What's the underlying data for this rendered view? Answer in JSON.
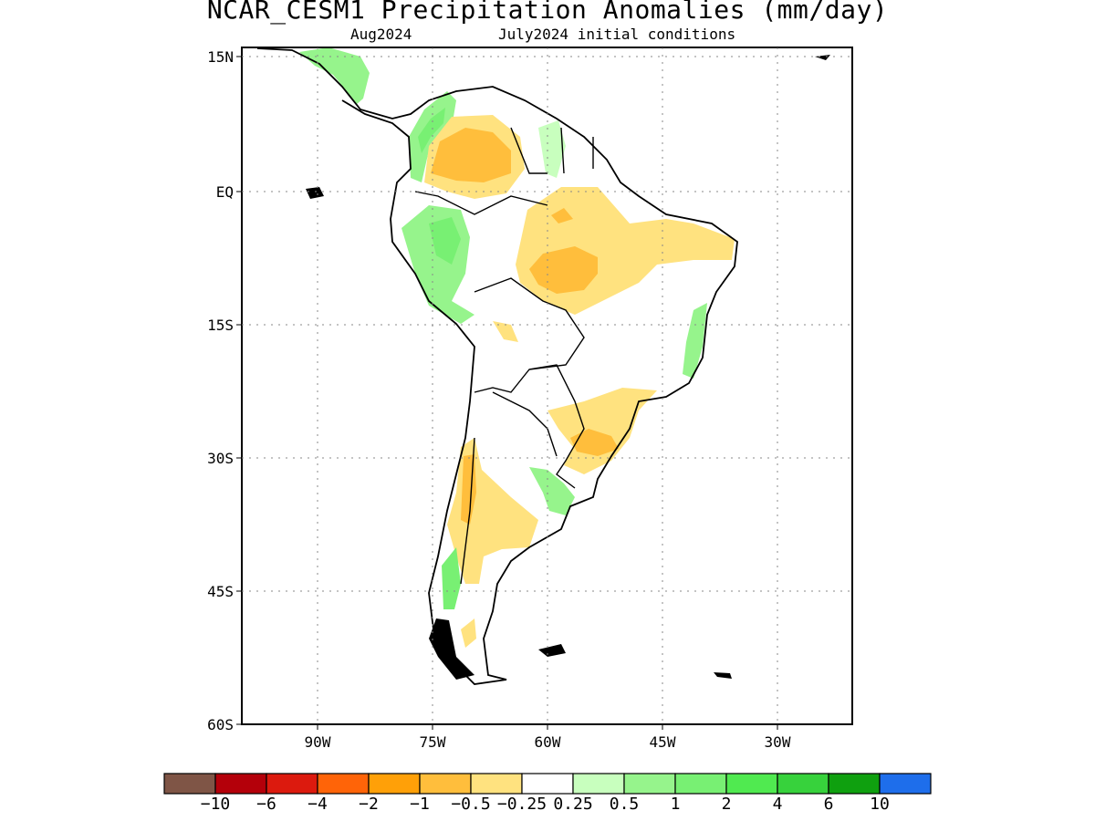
{
  "title": "NCAR_CESM1 Precipitation Anomalies (mm/day)",
  "subtitle_left": "Aug2024",
  "subtitle_right": "July2024 initial conditions",
  "map": {
    "lat_labels": [
      "15N",
      "EQ",
      "15S",
      "30S",
      "45S",
      "60S"
    ],
    "lon_labels": [
      "90W",
      "75W",
      "60W",
      "45W",
      "30W"
    ],
    "grid": "dotted"
  },
  "colorbar": {
    "colors": [
      "#7f5546",
      "#b4000a",
      "#dc1a0e",
      "#ff6408",
      "#ffa008",
      "#ffbe3c",
      "#ffe27f",
      "#ffffff",
      "#c8ffbe",
      "#96f48c",
      "#78f073",
      "#50ea50",
      "#37d23c",
      "#0fa00f",
      "#1e6eeb"
    ],
    "labels": [
      "−10",
      "−6",
      "−4",
      "−2",
      "−1",
      "−0.5",
      "−0.25",
      "0.25",
      "0.5",
      "1",
      "2",
      "4",
      "6",
      "10"
    ]
  },
  "regions": [
    {
      "name": "central-america-wet",
      "color": "#96f48c"
    },
    {
      "name": "colombia-wet",
      "color": "#78f073"
    },
    {
      "name": "venezuela-dry",
      "color": "#ffbe3c"
    },
    {
      "name": "amazon-dry",
      "color": "#ffe27f"
    },
    {
      "name": "amazon-dry-core",
      "color": "#ffbe3c"
    },
    {
      "name": "peru-wet",
      "color": "#96f48c"
    },
    {
      "name": "se-brazil-dry",
      "color": "#ffe27f"
    },
    {
      "name": "argentina-dry",
      "color": "#ffe27f"
    },
    {
      "name": "chile-wet",
      "color": "#78f073"
    }
  ]
}
